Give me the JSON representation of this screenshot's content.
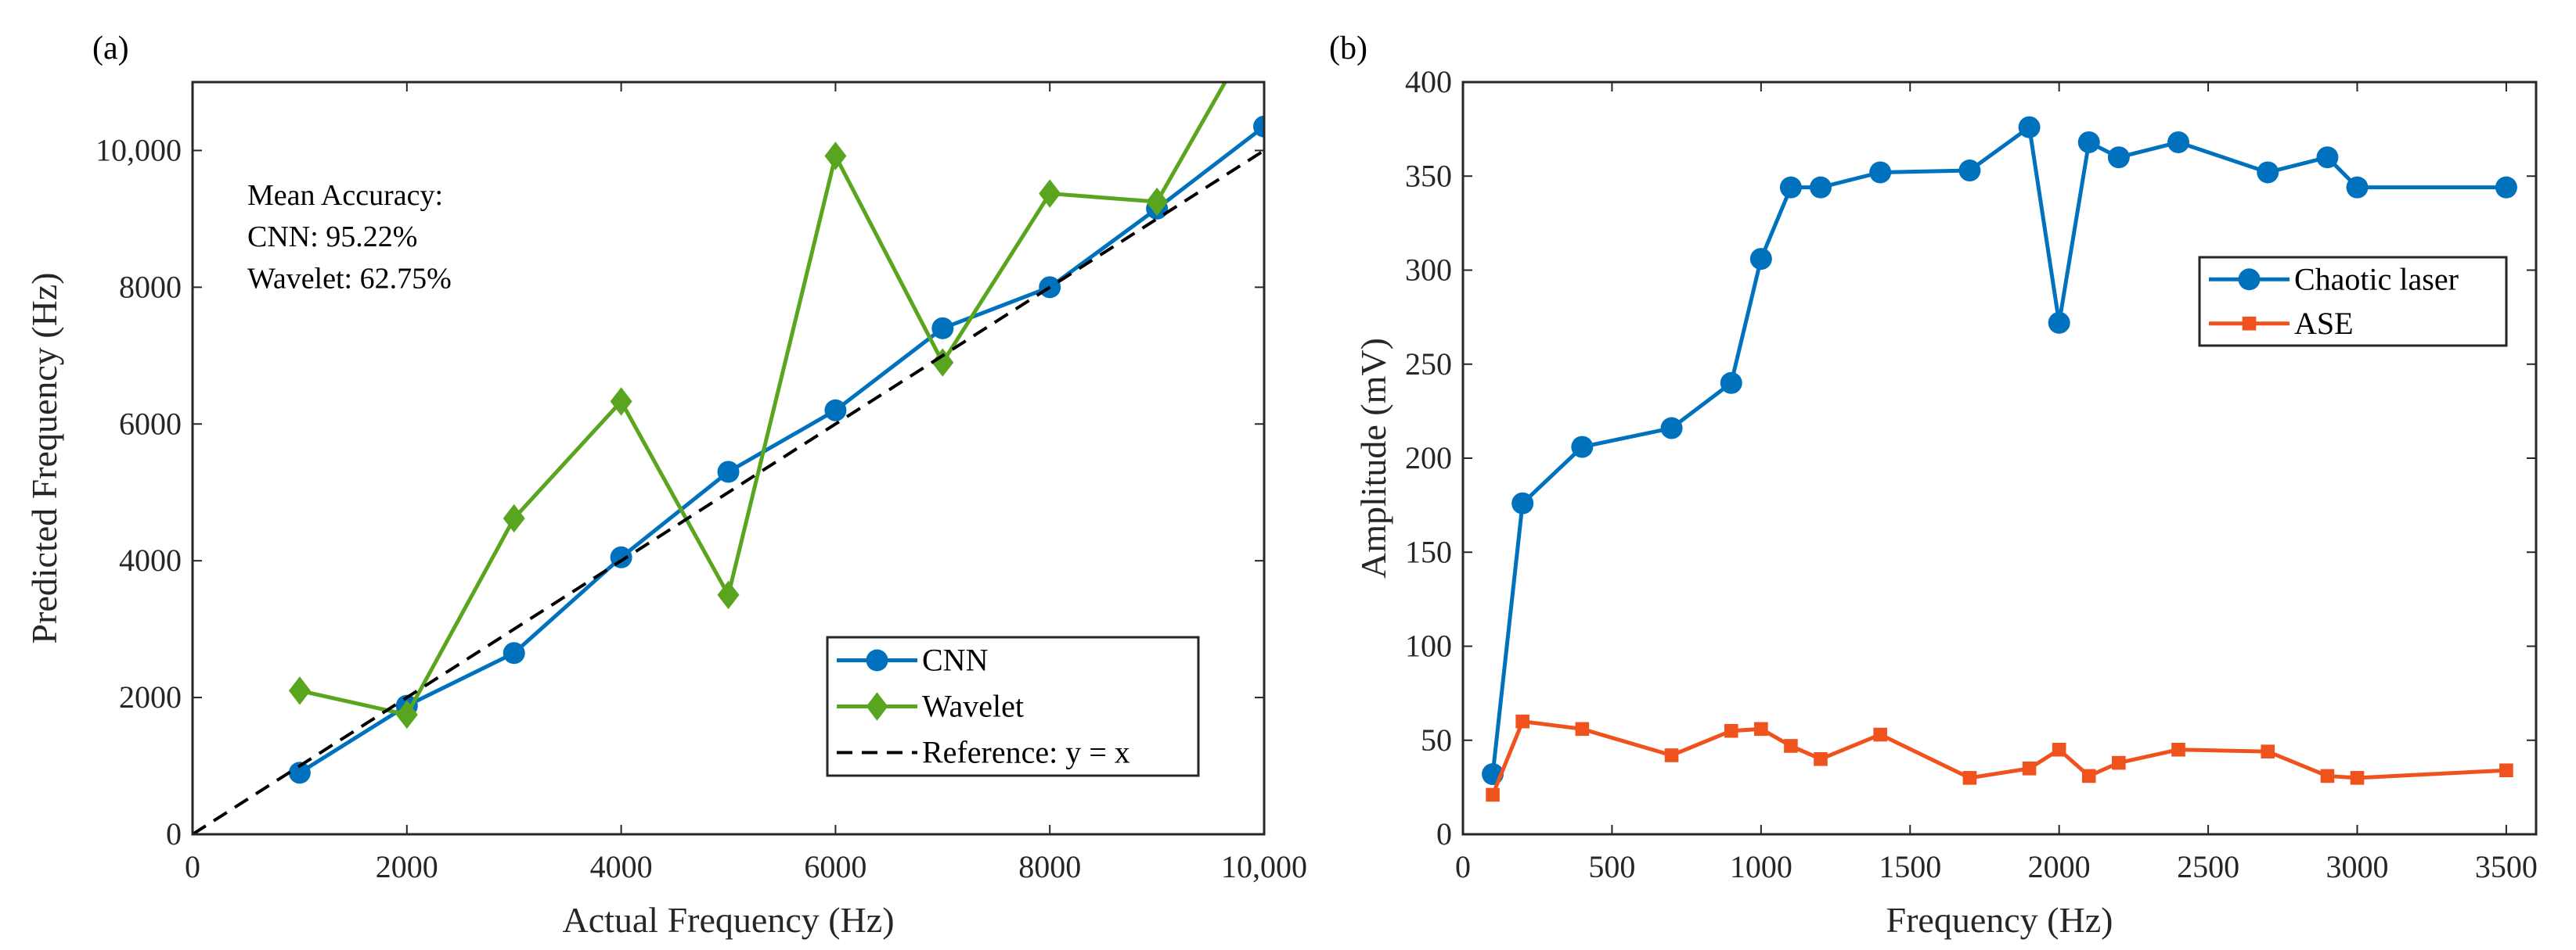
{
  "chart_data": [
    {
      "type": "line",
      "panel_label": "(a)",
      "xlabel": "Actual Frequency (Hz)",
      "ylabel": "Predicted Frequency (Hz)",
      "xlim": [
        0,
        10000
      ],
      "ylim": [
        0,
        11000
      ],
      "xticks": [
        0,
        2000,
        4000,
        6000,
        8000,
        10000
      ],
      "xtick_labels": [
        "0",
        "2000",
        "4000",
        "6000",
        "8000",
        "10,000"
      ],
      "yticks": [
        0,
        2000,
        4000,
        6000,
        8000,
        10000
      ],
      "ytick_labels": [
        "0",
        "2000",
        "4000",
        "6000",
        "8000",
        "10,000"
      ],
      "grid": false,
      "legend_position": "bottom-right",
      "annotation": [
        "Mean Accuracy:",
        "CNN: 95.22%",
        "Wavelet: 62.75%"
      ],
      "series": [
        {
          "name": "CNN",
          "color": "#0072BD",
          "marker": "circle",
          "x": [
            1000,
            2000,
            3000,
            4000,
            5000,
            6000,
            7000,
            8000,
            9000,
            10000
          ],
          "y": [
            900,
            1880,
            2650,
            4050,
            5300,
            6200,
            7400,
            8000,
            9150,
            10350
          ]
        },
        {
          "name": "Wavelet",
          "color": "#5AA51F",
          "marker": "diamond",
          "x": [
            1000,
            2000,
            3000,
            4000,
            5000,
            6000,
            7000,
            8000,
            9000,
            10000
          ],
          "y": [
            2100,
            1750,
            4620,
            6330,
            3500,
            9920,
            6900,
            9370,
            9250,
            12000
          ]
        },
        {
          "name": "Reference: y = x",
          "color": "#000000",
          "marker": "none",
          "dashed": true,
          "x": [
            0,
            10000
          ],
          "y": [
            0,
            10000
          ]
        }
      ]
    },
    {
      "type": "line",
      "panel_label": "(b)",
      "xlabel": "Frequency (Hz)",
      "ylabel": "Amplitude (mV)",
      "xlim": [
        0,
        3600
      ],
      "ylim": [
        0,
        400
      ],
      "xticks": [
        0,
        500,
        1000,
        1500,
        2000,
        2500,
        3000,
        3500
      ],
      "xtick_labels": [
        "0",
        "500",
        "1000",
        "1500",
        "2000",
        "2500",
        "3000",
        "3500"
      ],
      "yticks": [
        0,
        50,
        100,
        150,
        200,
        250,
        300,
        350,
        400
      ],
      "ytick_labels": [
        "0",
        "50",
        "100",
        "150",
        "200",
        "250",
        "300",
        "350",
        "400"
      ],
      "grid": false,
      "legend_position": "upper-right",
      "series": [
        {
          "name": "Chaotic laser",
          "color": "#0072BD",
          "marker": "circle",
          "x": [
            100,
            200,
            400,
            700,
            900,
            1000,
            1100,
            1200,
            1400,
            1700,
            1900,
            2000,
            2100,
            2200,
            2400,
            2700,
            2900,
            3000,
            3500
          ],
          "y": [
            32,
            176,
            206,
            216,
            240,
            306,
            344,
            344,
            352,
            353,
            376,
            272,
            368,
            360,
            368,
            352,
            360,
            344,
            344
          ]
        },
        {
          "name": "ASE",
          "color": "#F0521E",
          "marker": "square",
          "x": [
            100,
            200,
            400,
            700,
            900,
            1000,
            1100,
            1200,
            1400,
            1700,
            1900,
            2000,
            2100,
            2200,
            2400,
            2700,
            2900,
            3000,
            3500
          ],
          "y": [
            21,
            60,
            56,
            42,
            55,
            56,
            47,
            40,
            53,
            30,
            35,
            45,
            31,
            38,
            45,
            44,
            31,
            30,
            34
          ]
        }
      ]
    }
  ]
}
